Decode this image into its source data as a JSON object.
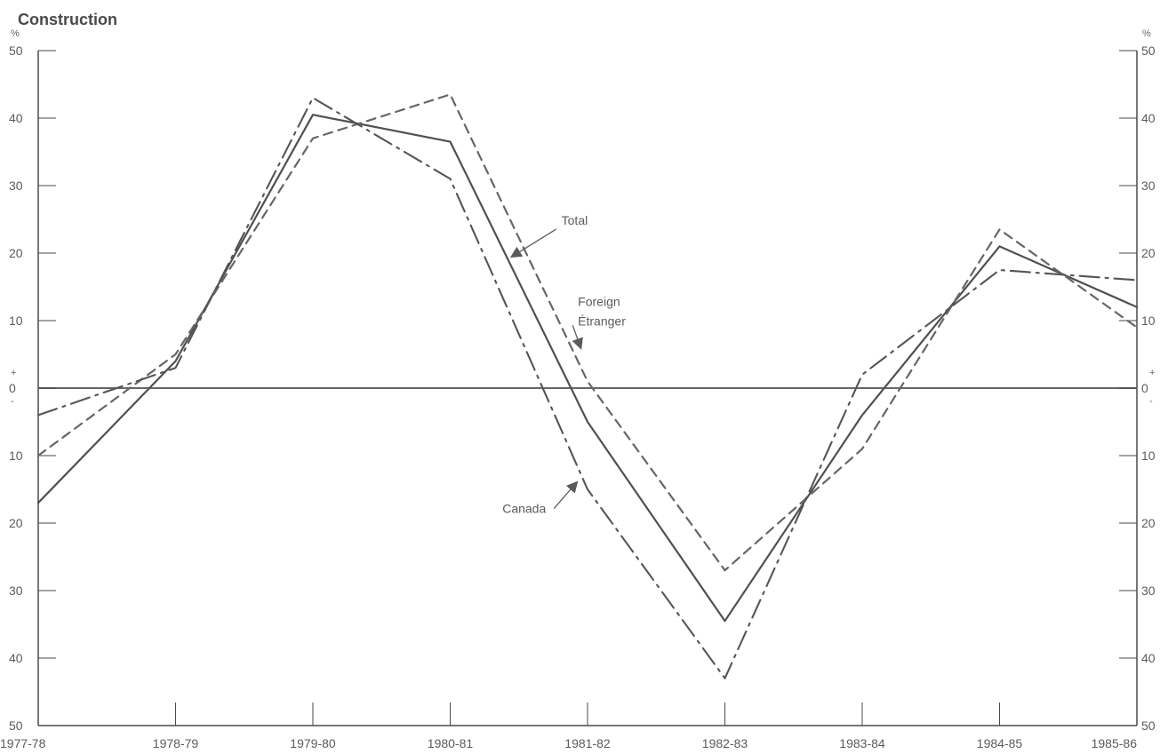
{
  "chart_data": {
    "type": "line",
    "title": "Construction",
    "xlabel": "",
    "ylabel": "%",
    "right_ylabel": "%",
    "x": [
      "1977-78",
      "1978-79",
      "1979-80",
      "1980-81",
      "1981-82",
      "1982-83",
      "1983-84",
      "1984-85",
      "1985-86"
    ],
    "ylim": [
      -50,
      50
    ],
    "y_ticks": [
      50,
      40,
      30,
      20,
      10,
      0,
      -10,
      -20,
      -30,
      -40,
      -50
    ],
    "y_tick_labels": [
      "50",
      "40",
      "30",
      "20",
      "10",
      "0",
      "10",
      "20",
      "30",
      "40",
      "50"
    ],
    "zero_positive_label": "+",
    "zero_negative_label": "-",
    "grid": false,
    "series": [
      {
        "name": "Total",
        "style": "solid",
        "values": [
          -17,
          4,
          40.5,
          36.5,
          -5,
          -34.5,
          -4,
          21,
          12
        ],
        "annotation_point": [
          3.45,
          19.5
        ]
      },
      {
        "name": "Foreign Étranger",
        "style": "dashed",
        "values": [
          -10,
          5,
          37,
          43.5,
          1,
          -27,
          -9,
          23.5,
          9
        ],
        "annotation_point": [
          3.95,
          6
        ]
      },
      {
        "name": "Canada",
        "style": "dashdot",
        "values": [
          -4,
          3,
          43,
          31,
          -15,
          -43,
          2,
          17.5,
          16
        ],
        "annotation_point": [
          3.92,
          -14
        ]
      }
    ],
    "annotations": [
      {
        "id": "total",
        "lines": [
          "Total"
        ],
        "text_x": 3.81,
        "text_y": 24.2,
        "target_x": 3.45,
        "target_y": 19.5
      },
      {
        "id": "foreign",
        "lines": [
          "Foreign",
          "Étranger"
        ],
        "text_x": 3.93,
        "text_y": 12.2,
        "target_x": 3.95,
        "target_y": 6
      },
      {
        "id": "canada",
        "lines": [
          "Canada"
        ],
        "text_x": 3.38,
        "text_y": -18.5,
        "target_x": 3.92,
        "target_y": -14
      }
    ],
    "colors": {
      "axis": "#4a4a4a",
      "zero_line": "#666666",
      "total": "#505050",
      "foreign": "#666666",
      "canada": "#555555",
      "text": "#5b5b5b"
    }
  }
}
